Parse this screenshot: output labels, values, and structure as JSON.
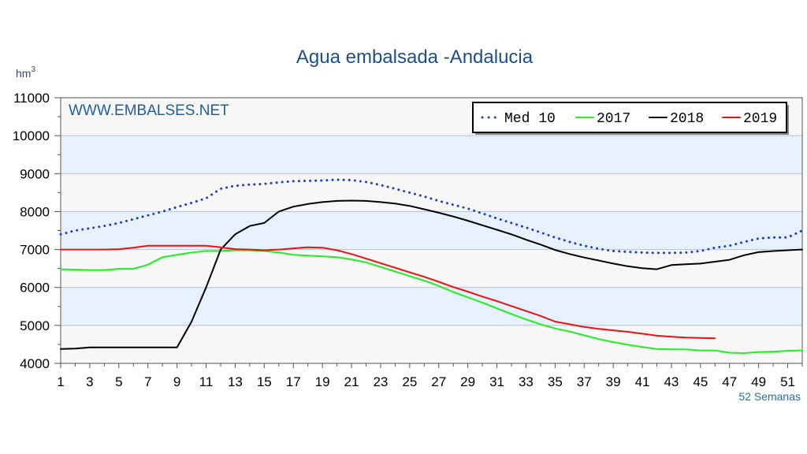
{
  "chart_data": {
    "type": "line",
    "title": "Agua embalsada -Andalucia",
    "ylabel": "hm",
    "ylabel_superscript": "3",
    "xlabel": "52 Semanas",
    "watermark": "WWW.EMBALSES.NET",
    "ylim": [
      4000,
      11000
    ],
    "xlim": [
      1,
      52
    ],
    "yticks": [
      "4000",
      "5000",
      "6000",
      "7000",
      "8000",
      "9000",
      "10000",
      "11000"
    ],
    "xticks": [
      "1",
      "3",
      "5",
      "7",
      "9",
      "11",
      "13",
      "15",
      "17",
      "19",
      "21",
      "23",
      "25",
      "27",
      "29",
      "31",
      "33",
      "35",
      "37",
      "39",
      "41",
      "43",
      "45",
      "47",
      "49",
      "51"
    ],
    "legend_position": "top-right",
    "grid": true,
    "background_bands": true,
    "x": [
      1,
      2,
      3,
      4,
      5,
      6,
      7,
      8,
      9,
      10,
      11,
      12,
      13,
      14,
      15,
      16,
      17,
      18,
      19,
      20,
      21,
      22,
      23,
      24,
      25,
      26,
      27,
      28,
      29,
      30,
      31,
      32,
      33,
      34,
      35,
      36,
      37,
      38,
      39,
      40,
      41,
      42,
      43,
      44,
      45,
      46,
      47,
      48,
      49,
      50,
      51,
      52
    ],
    "series": [
      {
        "name": "Med 10",
        "color": "#1e3fd6",
        "style": "dotted",
        "values": [
          7400,
          7500,
          7560,
          7620,
          7700,
          7800,
          7900,
          8000,
          8120,
          8230,
          8350,
          8600,
          8680,
          8710,
          8730,
          8770,
          8800,
          8810,
          8820,
          8840,
          8830,
          8780,
          8700,
          8600,
          8500,
          8400,
          8280,
          8180,
          8080,
          7950,
          7820,
          7700,
          7580,
          7450,
          7320,
          7200,
          7100,
          7020,
          6960,
          6940,
          6920,
          6910,
          6910,
          6920,
          6960,
          7050,
          7100,
          7200,
          7290,
          7320,
          7320,
          7500
        ]
      },
      {
        "name": "2017",
        "color": "#22ee22",
        "style": "solid",
        "values": [
          6480,
          6470,
          6460,
          6460,
          6490,
          6490,
          6600,
          6800,
          6860,
          6920,
          6960,
          6960,
          6980,
          6980,
          6960,
          6920,
          6860,
          6840,
          6820,
          6800,
          6740,
          6660,
          6540,
          6420,
          6300,
          6180,
          6040,
          5880,
          5740,
          5600,
          5450,
          5300,
          5160,
          5030,
          4920,
          4840,
          4740,
          4640,
          4560,
          4490,
          4430,
          4380,
          4370,
          4370,
          4340,
          4340,
          4280,
          4270,
          4300,
          4310,
          4330,
          4340
        ]
      },
      {
        "name": "2018",
        "color": "#000000",
        "style": "solid",
        "values": [
          4380,
          4390,
          4420,
          4420,
          4420,
          4420,
          4420,
          4420,
          4420,
          5100,
          6000,
          7000,
          7400,
          7620,
          7700,
          8000,
          8130,
          8200,
          8250,
          8280,
          8290,
          8280,
          8250,
          8210,
          8150,
          8060,
          7970,
          7870,
          7760,
          7640,
          7520,
          7400,
          7260,
          7130,
          6990,
          6880,
          6790,
          6710,
          6630,
          6560,
          6510,
          6480,
          6590,
          6610,
          6630,
          6680,
          6730,
          6850,
          6930,
          6960,
          6980,
          7000
        ]
      },
      {
        "name": "2019",
        "color": "#ee1111",
        "style": "solid",
        "values": [
          7000,
          7000,
          7000,
          7000,
          7010,
          7050,
          7100,
          7100,
          7100,
          7100,
          7100,
          7060,
          7010,
          7000,
          6980,
          7000,
          7030,
          7060,
          7050,
          6980,
          6880,
          6760,
          6640,
          6520,
          6400,
          6280,
          6150,
          6010,
          5890,
          5760,
          5640,
          5510,
          5380,
          5250,
          5100,
          5030,
          4960,
          4910,
          4870,
          4830,
          4780,
          4730,
          4700,
          4680,
          4670,
          4660,
          null,
          null,
          null,
          null,
          null,
          null
        ]
      }
    ]
  }
}
